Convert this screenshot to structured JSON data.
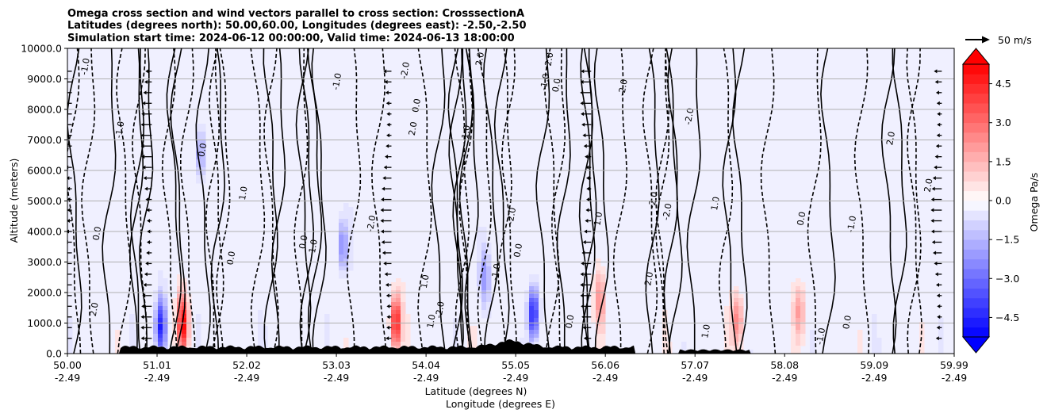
{
  "chart_data": {
    "type": "heatmap",
    "title_lines": [
      "Omega cross section and wind vectors parallel to cross section: CrosssectionA",
      "Latitudes (degrees north): 50.00,60.00, Longitudes (degrees east): -2.50,-2.50",
      "Simulation start time: 2024-06-12 00:00:00, Valid time: 2024-06-13 18:00:00"
    ],
    "ylabel": "Altitude (meters)",
    "xlabel_lines": [
      "Latitude (degrees N)",
      "Longitude (degrees E)"
    ],
    "ylim": [
      0,
      10000
    ],
    "y_ticks": [
      "0.0",
      "1000.0",
      "2000.0",
      "3000.0",
      "4000.0",
      "5000.0",
      "6000.0",
      "7000.0",
      "8000.0",
      "9000.0",
      "10000.0"
    ],
    "y_tick_values": [
      0,
      1000,
      2000,
      3000,
      4000,
      5000,
      6000,
      7000,
      8000,
      9000,
      10000
    ],
    "x_range": [
      50.0,
      59.99
    ],
    "x_tick_values": [
      50.0,
      51.01,
      52.02,
      53.03,
      54.04,
      55.05,
      56.06,
      57.07,
      58.08,
      59.09,
      59.99
    ],
    "x_ticks_lat": [
      "50.00",
      "51.01",
      "52.02",
      "53.03",
      "54.04",
      "55.05",
      "56.06",
      "57.07",
      "58.08",
      "59.09",
      "59.99"
    ],
    "x_ticks_lon": [
      "-2.49",
      "-2.49",
      "-2.49",
      "-2.49",
      "-2.49",
      "-2.49",
      "-2.49",
      "-2.49",
      "-2.49",
      "-2.49",
      "-2.49"
    ],
    "grid": true,
    "colorbar": {
      "label": "Omega Pa/s",
      "range": [
        -5.25,
        5.25
      ],
      "levels": 28,
      "extend": "both",
      "tick_values": [
        4.5,
        3.0,
        1.5,
        0.0,
        -1.5,
        -3.0,
        -4.5
      ],
      "tick_labels": [
        "4.5",
        "3.0",
        "1.5",
        "0.0",
        "−1.5",
        "−3.0",
        "−4.5"
      ],
      "cmap": "bwr"
    },
    "quiver_key": {
      "label": "50 m/s",
      "speed": 50
    },
    "contour_labels": [
      "0.0",
      "1.0",
      "-1.0",
      "2.0",
      "-2.0"
    ],
    "features": [
      {
        "lat": 51.3,
        "alt": 1000,
        "omega": 5.0
      },
      {
        "lat": 51.05,
        "alt": 900,
        "omega": -4.5
      },
      {
        "lat": 53.7,
        "alt": 1000,
        "omega": 5.0
      },
      {
        "lat": 55.25,
        "alt": 1300,
        "omega": -5.0
      },
      {
        "lat": 56.0,
        "alt": 1800,
        "omega": 2.0
      },
      {
        "lat": 57.55,
        "alt": 1100,
        "omega": 2.5
      },
      {
        "lat": 58.25,
        "alt": 1400,
        "omega": 2.0
      },
      {
        "lat": 51.5,
        "alt": 6500,
        "omega": -2.0
      },
      {
        "lat": 53.1,
        "alt": 3500,
        "omega": -2.5
      },
      {
        "lat": 54.7,
        "alt": 2500,
        "omega": -2.0
      }
    ]
  },
  "colors": {
    "negative": "#0000ff",
    "positive": "#ff0000",
    "neutral": "#ffffff",
    "terrain": "#000000"
  }
}
